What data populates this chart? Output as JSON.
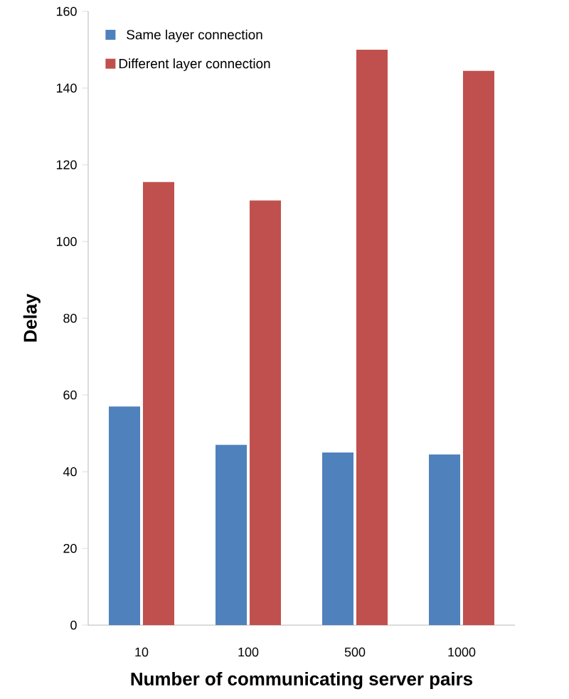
{
  "chart_data": {
    "type": "bar",
    "xlabel": "Number of communicating server pairs",
    "ylabel": "Delay",
    "categories": [
      "10",
      "100",
      "500",
      "1000"
    ],
    "series": [
      {
        "name": "Same layer connection",
        "color": "#4f81bd",
        "values": [
          57,
          47,
          45,
          44.5
        ]
      },
      {
        "name": "Different layer connection",
        "color": "#c0504d",
        "values": [
          115.5,
          110.7,
          150,
          144.5
        ]
      }
    ],
    "ylim": [
      0,
      160
    ],
    "yticks": [
      0,
      20,
      40,
      60,
      80,
      100,
      120,
      140,
      160
    ],
    "legend": "top left",
    "grid": false
  }
}
